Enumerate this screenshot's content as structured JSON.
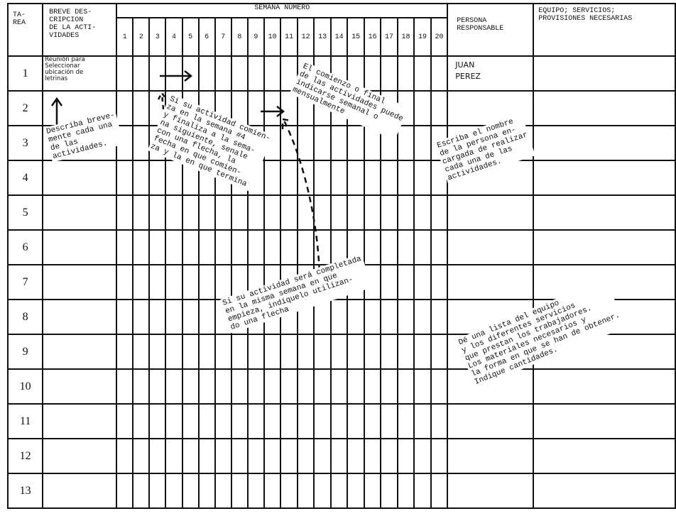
{
  "header": {
    "tarea": "TA-\nREA",
    "descripcion": "BREVE DES-\nCRIPCION\nDE LA ACTI-\nVIDADES",
    "semana": "SEMANA NUMERO",
    "weeks": [
      "1",
      "2",
      "3",
      "4",
      "5",
      "6",
      "7",
      "8",
      "9",
      "10",
      "11",
      "12",
      "13",
      "14",
      "15",
      "16",
      "17",
      "18",
      "19",
      "20"
    ],
    "persona": "PERSONA\nRESPONSABLE",
    "equipo": "EQUIPO; SERVICIOS;\nPROVISIONES NECESARIAS"
  },
  "rows": [
    {
      "tarea": "1",
      "descripcion": "Reunión para\nSeleccionar\nubicación de\nletrinas",
      "persona": "JUAN\nPEREZ"
    },
    {
      "tarea": "2",
      "descripcion": "",
      "persona": ""
    },
    {
      "tarea": "3",
      "descripcion": "",
      "persona": ""
    },
    {
      "tarea": "4",
      "descripcion": "",
      "persona": ""
    },
    {
      "tarea": "5",
      "descripcion": "",
      "persona": ""
    },
    {
      "tarea": "6",
      "descripcion": "",
      "persona": ""
    },
    {
      "tarea": "7",
      "descripcion": "",
      "persona": ""
    },
    {
      "tarea": "8",
      "descripcion": "",
      "persona": ""
    },
    {
      "tarea": "9",
      "descripcion": "",
      "persona": ""
    },
    {
      "tarea": "10",
      "descripcion": "",
      "persona": ""
    },
    {
      "tarea": "11",
      "descripcion": "",
      "persona": ""
    },
    {
      "tarea": "12",
      "descripcion": "",
      "persona": ""
    },
    {
      "tarea": "13",
      "descripcion": "",
      "persona": ""
    }
  ],
  "notes": {
    "periodo": "El comienzo o final\nde las actividades puede\nindicarse semanal o\nmensualmente",
    "describa": "Describa breve-\nmente cada una\nde las\nactividades.",
    "semanas": "Si su actividad comien-\nza en la semana #4\ny finaliza a la sema-\nna siguiente, senale\ncon una flecha, la\nfecha en que comien-\nza y la en que termina",
    "misma_semana": "Si su actividad será completada\nen la misma semana en que\nempieza, indíquelo utilizan-\ndo una flecha",
    "persona": "Escriba el nombre\nde la persona en-\ncargada de realizar\ncada una de las\nactividades.",
    "equipo": "Dé una lista del equipo\ny los diferentes servicios\nque prestan los trabajadores.\nLos materiales necesarios y\nla forma en que se han de obtener.\nIndique cantidades."
  }
}
